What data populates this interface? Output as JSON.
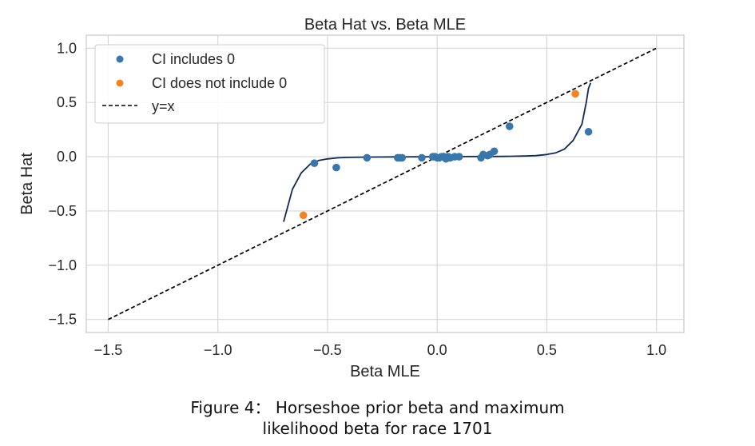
{
  "chart_data": {
    "type": "scatter",
    "title": "Beta Hat vs. Beta MLE",
    "xlabel": "Beta MLE",
    "ylabel": "Beta Hat",
    "xlim": [
      -1.6,
      1.125
    ],
    "ylim": [
      -1.62,
      1.12
    ],
    "xticks": [
      -1.5,
      -1.0,
      -0.5,
      0.0,
      0.5,
      1.0
    ],
    "xtick_labels": [
      "−1.5",
      "−1.0",
      "−0.5",
      "0.0",
      "0.5",
      "1.0"
    ],
    "yticks": [
      -1.5,
      -1.0,
      -0.5,
      0.0,
      0.5,
      1.0
    ],
    "ytick_labels": [
      "−1.5",
      "−1.0",
      "−0.5",
      "0.0",
      "0.5",
      "1.0"
    ],
    "grid": true,
    "legend_position": "top-left",
    "series": [
      {
        "name": "CI includes 0",
        "kind": "points",
        "color": "#3a76a9",
        "points": [
          [
            -0.56,
            -0.06
          ],
          [
            -0.46,
            -0.1
          ],
          [
            -0.32,
            -0.01
          ],
          [
            -0.18,
            -0.01
          ],
          [
            -0.17,
            -0.01
          ],
          [
            -0.16,
            -0.01
          ],
          [
            -0.07,
            -0.01
          ],
          [
            -0.02,
            0.0
          ],
          [
            -0.01,
            0.0
          ],
          [
            0.0,
            -0.01
          ],
          [
            0.01,
            -0.01
          ],
          [
            0.02,
            0.0
          ],
          [
            0.03,
            0.0
          ],
          [
            0.04,
            -0.02
          ],
          [
            0.05,
            0.0
          ],
          [
            0.06,
            -0.01
          ],
          [
            0.08,
            0.0
          ],
          [
            0.1,
            0.0
          ],
          [
            0.2,
            -0.01
          ],
          [
            0.21,
            0.02
          ],
          [
            0.23,
            0.01
          ],
          [
            0.24,
            0.02
          ],
          [
            0.26,
            0.05
          ],
          [
            0.33,
            0.28
          ],
          [
            0.69,
            0.23
          ]
        ]
      },
      {
        "name": "CI does not include 0",
        "kind": "points",
        "color": "#f28426",
        "points": [
          [
            -0.61,
            -0.54
          ],
          [
            0.63,
            0.58
          ]
        ]
      },
      {
        "name": "y=x",
        "kind": "dashed-line",
        "color": "#000000",
        "points": [
          [
            -1.5,
            -1.5
          ],
          [
            1.0,
            1.0
          ]
        ]
      },
      {
        "name": "",
        "kind": "fit-curve",
        "color": "#112a4d",
        "points": [
          [
            -0.7,
            -0.6
          ],
          [
            -0.66,
            -0.3
          ],
          [
            -0.62,
            -0.15
          ],
          [
            -0.58,
            -0.07
          ],
          [
            -0.54,
            -0.035
          ],
          [
            -0.5,
            -0.02
          ],
          [
            -0.45,
            -0.01
          ],
          [
            -0.4,
            -0.006
          ],
          [
            -0.3,
            -0.003
          ],
          [
            -0.2,
            -0.002
          ],
          [
            -0.1,
            -0.001
          ],
          [
            0.0,
            0.0
          ],
          [
            0.1,
            0.001
          ],
          [
            0.2,
            0.002
          ],
          [
            0.3,
            0.003
          ],
          [
            0.4,
            0.006
          ],
          [
            0.45,
            0.01
          ],
          [
            0.5,
            0.02
          ],
          [
            0.54,
            0.035
          ],
          [
            0.58,
            0.07
          ],
          [
            0.62,
            0.15
          ],
          [
            0.66,
            0.3
          ],
          [
            0.68,
            0.5
          ],
          [
            0.69,
            0.63
          ],
          [
            0.7,
            0.68
          ]
        ]
      }
    ]
  },
  "caption": {
    "line1": "Figure 4： Horseshoe prior beta and maximum",
    "line2": "likelihood beta for race 1701"
  }
}
